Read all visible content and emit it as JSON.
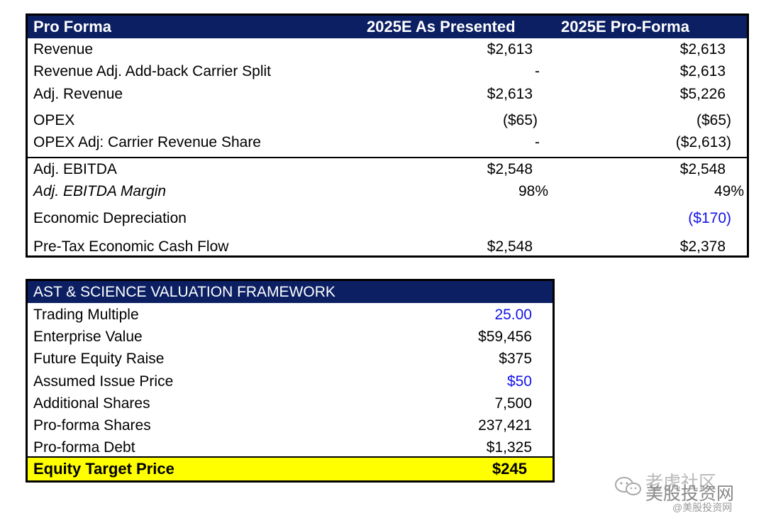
{
  "pro_forma": {
    "header": {
      "label": "Pro Forma",
      "col1": "2025E As Presented",
      "col2": "2025E Pro-Forma"
    },
    "rows": [
      {
        "label": "Revenue",
        "col1": "$2,613",
        "col2": "$2,613"
      },
      {
        "label": "Revenue Adj.  Add-back Carrier Split",
        "col1": "-",
        "col2": "$2,613"
      },
      {
        "label": "Adj. Revenue",
        "col1": "$2,613",
        "col2": "$5,226"
      },
      {
        "label": "OPEX",
        "col1": "($65)",
        "col2": "($65)"
      },
      {
        "label": "OPEX Adj:  Carrier Revenue Share",
        "col1": "-",
        "col2": "($2,613)"
      },
      {
        "label": "Adj. EBITDA",
        "col1": "$2,548",
        "col2": "$2,548"
      },
      {
        "label": "Adj. EBITDA Margin",
        "col1": "98%",
        "col2": "49%"
      },
      {
        "label": "Economic Depreciation",
        "col1": "",
        "col2": "($170)"
      },
      {
        "label": "Pre-Tax Economic Cash Flow",
        "col1": "$2,548",
        "col2": "$2,378"
      }
    ]
  },
  "valuation": {
    "header": "AST & SCIENCE VALUATION FRAMEWORK",
    "rows": [
      {
        "label": "Trading Multiple",
        "value": "25.00"
      },
      {
        "label": "Enterprise Value",
        "value": "$59,456"
      },
      {
        "label": "Future Equity Raise",
        "value": "$375"
      },
      {
        "label": "Assumed Issue Price",
        "value": "$50"
      },
      {
        "label": "Additional Shares",
        "value": "7,500"
      },
      {
        "label": "Pro-forma Shares",
        "value": "237,421"
      },
      {
        "label": "Pro-forma Debt",
        "value": "$1,325"
      }
    ],
    "target": {
      "label": "Equity Target Price",
      "value": "$245"
    }
  },
  "watermark": {
    "line1": "老虎社区",
    "line2": "美股投资网",
    "line3": "@美股投资网"
  },
  "colors": {
    "header_bg": "#0b1f62",
    "input_blue": "#1313e6",
    "highlight": "#ffff00"
  }
}
